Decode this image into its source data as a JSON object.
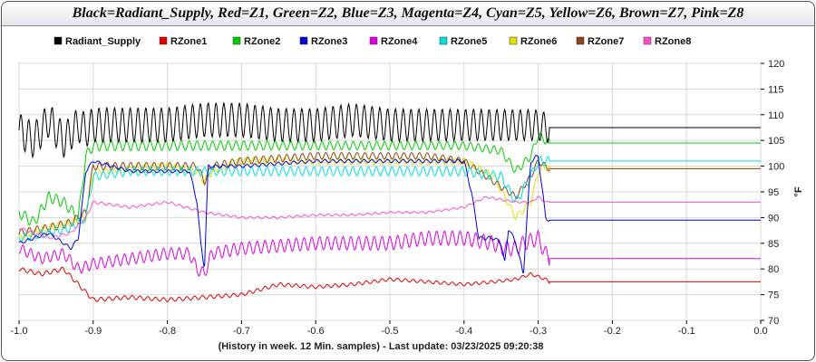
{
  "title": "Black=Radiant_Supply, Red=Z1, Green=Z2, Blue=Z3, Magenta=Z4, Cyan=Z5, Yellow=Z6, Brown=Z7, Pink=Z8",
  "footer": "(History in week. 12 Min. samples) - Last update: 03/23/2025 09:20:38",
  "chart_data": {
    "type": "line",
    "title": "Black=Radiant_Supply, Red=Z1, Green=Z2, Blue=Z3, Magenta=Z4, Cyan=Z5, Yellow=Z6, Brown=Z7, Pink=Z8",
    "xlabel": "(History in week. 12 Min. samples) - Last update: 03/23/2025 09:20:38",
    "ylabel": "°F",
    "xlim": [
      -1.0,
      0.0
    ],
    "ylim": [
      70,
      120
    ],
    "x_ticks": [
      "-1.0",
      "-0.9",
      "-0.8",
      "-0.7",
      "-0.6",
      "-0.5",
      "-0.4",
      "-0.3",
      "-0.2",
      "-0.1",
      "0.0"
    ],
    "y_ticks": [
      "70",
      "75",
      "80",
      "85",
      "90",
      "95",
      "100",
      "105",
      "110",
      "115",
      "120"
    ],
    "y_axis_side": "right",
    "grid": true,
    "legend": "top",
    "series": [
      {
        "name": "Radiant_Supply",
        "color": "#000000",
        "points": [
          [
            -1.0,
            107
          ],
          [
            -0.98,
            105
          ],
          [
            -0.96,
            109
          ],
          [
            -0.94,
            105
          ],
          [
            -0.92,
            108
          ],
          [
            -0.91,
            107
          ],
          [
            -0.9,
            108
          ],
          [
            -0.85,
            108
          ],
          [
            -0.8,
            108
          ],
          [
            -0.75,
            109
          ],
          [
            -0.7,
            109
          ],
          [
            -0.65,
            108
          ],
          [
            -0.6,
            108
          ],
          [
            -0.55,
            109
          ],
          [
            -0.5,
            108
          ],
          [
            -0.45,
            108
          ],
          [
            -0.4,
            108
          ],
          [
            -0.35,
            108
          ],
          [
            -0.3,
            108
          ],
          [
            -0.29,
            107.5
          ],
          [
            0.0,
            107.5
          ]
        ],
        "osc": 4.5
      },
      {
        "name": "RZone1",
        "color": "#e00000",
        "points": [
          [
            -1.0,
            80
          ],
          [
            -0.97,
            79
          ],
          [
            -0.94,
            80
          ],
          [
            -0.92,
            77
          ],
          [
            -0.9,
            74
          ],
          [
            -0.85,
            74.5
          ],
          [
            -0.8,
            74
          ],
          [
            -0.75,
            74.5
          ],
          [
            -0.7,
            75
          ],
          [
            -0.65,
            77
          ],
          [
            -0.6,
            76.5
          ],
          [
            -0.55,
            77
          ],
          [
            -0.5,
            78
          ],
          [
            -0.45,
            77.5
          ],
          [
            -0.4,
            77
          ],
          [
            -0.36,
            77.5
          ],
          [
            -0.33,
            78
          ],
          [
            -0.31,
            79
          ],
          [
            -0.29,
            78
          ],
          [
            -0.285,
            77.5
          ],
          [
            0.0,
            77.5
          ]
        ],
        "osc": 0.6
      },
      {
        "name": "RZone2",
        "color": "#00d000",
        "points": [
          [
            -1.0,
            91
          ],
          [
            -0.98,
            89
          ],
          [
            -0.96,
            94
          ],
          [
            -0.94,
            93
          ],
          [
            -0.92,
            90
          ],
          [
            -0.91,
            102
          ],
          [
            -0.9,
            104
          ],
          [
            -0.8,
            104
          ],
          [
            -0.7,
            104
          ],
          [
            -0.6,
            104
          ],
          [
            -0.5,
            104
          ],
          [
            -0.4,
            104
          ],
          [
            -0.35,
            103
          ],
          [
            -0.33,
            99
          ],
          [
            -0.31,
            102
          ],
          [
            -0.3,
            106
          ],
          [
            -0.29,
            105
          ],
          [
            -0.285,
            104.5
          ],
          [
            0.0,
            104.5
          ]
        ],
        "osc": 2.2
      },
      {
        "name": "RZone3",
        "color": "#0000e0",
        "points": [
          [
            -1.0,
            85
          ],
          [
            -0.96,
            87
          ],
          [
            -0.93,
            84
          ],
          [
            -0.92,
            86
          ],
          [
            -0.91,
            99
          ],
          [
            -0.9,
            101
          ],
          [
            -0.85,
            99
          ],
          [
            -0.8,
            99
          ],
          [
            -0.77,
            99
          ],
          [
            -0.76,
            93
          ],
          [
            -0.755,
            85
          ],
          [
            -0.75,
            80
          ],
          [
            -0.745,
            100
          ],
          [
            -0.7,
            100
          ],
          [
            -0.6,
            101
          ],
          [
            -0.5,
            101
          ],
          [
            -0.4,
            101
          ],
          [
            -0.39,
            95
          ],
          [
            -0.38,
            86
          ],
          [
            -0.36,
            86
          ],
          [
            -0.35,
            85
          ],
          [
            -0.345,
            81
          ],
          [
            -0.34,
            88
          ],
          [
            -0.33,
            85
          ],
          [
            -0.32,
            79
          ],
          [
            -0.31,
            101
          ],
          [
            -0.3,
            102
          ],
          [
            -0.29,
            90
          ],
          [
            -0.285,
            89.5
          ],
          [
            0.0,
            89.5
          ]
        ],
        "osc": 0.8
      },
      {
        "name": "RZone4",
        "color": "#e000e0",
        "points": [
          [
            -1.0,
            84
          ],
          [
            -0.97,
            82
          ],
          [
            -0.94,
            83
          ],
          [
            -0.92,
            80
          ],
          [
            -0.9,
            81
          ],
          [
            -0.85,
            82
          ],
          [
            -0.8,
            83
          ],
          [
            -0.77,
            83
          ],
          [
            -0.76,
            80
          ],
          [
            -0.75,
            79
          ],
          [
            -0.74,
            83
          ],
          [
            -0.7,
            84
          ],
          [
            -0.6,
            85
          ],
          [
            -0.5,
            85
          ],
          [
            -0.45,
            86
          ],
          [
            -0.4,
            86
          ],
          [
            -0.36,
            85
          ],
          [
            -0.35,
            84
          ],
          [
            -0.33,
            84
          ],
          [
            -0.32,
            85
          ],
          [
            -0.3,
            86
          ],
          [
            -0.29,
            83
          ],
          [
            -0.285,
            82
          ],
          [
            0.0,
            82
          ]
        ],
        "osc": 2.2
      },
      {
        "name": "RZone5",
        "color": "#00e0e0",
        "points": [
          [
            -1.0,
            86
          ],
          [
            -0.96,
            87
          ],
          [
            -0.93,
            88
          ],
          [
            -0.91,
            90
          ],
          [
            -0.9,
            98
          ],
          [
            -0.85,
            99
          ],
          [
            -0.8,
            99
          ],
          [
            -0.75,
            99
          ],
          [
            -0.7,
            99
          ],
          [
            -0.6,
            99
          ],
          [
            -0.5,
            99
          ],
          [
            -0.4,
            99
          ],
          [
            -0.35,
            98
          ],
          [
            -0.33,
            93
          ],
          [
            -0.31,
            98
          ],
          [
            -0.3,
            101
          ],
          [
            -0.29,
            101
          ],
          [
            -0.285,
            101
          ],
          [
            0.0,
            101
          ]
        ],
        "osc": 1.2
      },
      {
        "name": "RZone6",
        "color": "#e0e000",
        "points": [
          [
            -1.0,
            86
          ],
          [
            -0.96,
            88
          ],
          [
            -0.93,
            89
          ],
          [
            -0.91,
            90
          ],
          [
            -0.9,
            99
          ],
          [
            -0.85,
            99.5
          ],
          [
            -0.8,
            100
          ],
          [
            -0.76,
            99
          ],
          [
            -0.75,
            97
          ],
          [
            -0.74,
            99
          ],
          [
            -0.7,
            101
          ],
          [
            -0.6,
            101
          ],
          [
            -0.5,
            101
          ],
          [
            -0.4,
            101
          ],
          [
            -0.36,
            98
          ],
          [
            -0.33,
            90
          ],
          [
            -0.31,
            93
          ],
          [
            -0.3,
            99
          ],
          [
            -0.29,
            100
          ],
          [
            -0.285,
            99.5
          ],
          [
            0.0,
            99.5
          ]
        ],
        "osc": 0.9
      },
      {
        "name": "RZone7",
        "color": "#8b4513",
        "points": [
          [
            -1.0,
            87
          ],
          [
            -0.96,
            88
          ],
          [
            -0.93,
            89
          ],
          [
            -0.91,
            91
          ],
          [
            -0.9,
            100
          ],
          [
            -0.85,
            100
          ],
          [
            -0.8,
            100
          ],
          [
            -0.76,
            100
          ],
          [
            -0.75,
            97
          ],
          [
            -0.74,
            100
          ],
          [
            -0.7,
            101
          ],
          [
            -0.6,
            102
          ],
          [
            -0.5,
            102
          ],
          [
            -0.45,
            102
          ],
          [
            -0.4,
            101
          ],
          [
            -0.36,
            97
          ],
          [
            -0.33,
            94
          ],
          [
            -0.31,
            98
          ],
          [
            -0.3,
            101
          ],
          [
            -0.29,
            100
          ],
          [
            -0.285,
            99.5
          ],
          [
            0.0,
            99.5
          ]
        ],
        "osc": 1.1
      },
      {
        "name": "RZone8",
        "color": "#ff4fc8",
        "points": [
          [
            -1.0,
            88
          ],
          [
            -0.96,
            86
          ],
          [
            -0.93,
            87
          ],
          [
            -0.91,
            90
          ],
          [
            -0.9,
            93
          ],
          [
            -0.85,
            92
          ],
          [
            -0.8,
            93
          ],
          [
            -0.75,
            91
          ],
          [
            -0.7,
            90
          ],
          [
            -0.65,
            90
          ],
          [
            -0.6,
            90.5
          ],
          [
            -0.55,
            90.5
          ],
          [
            -0.5,
            91
          ],
          [
            -0.45,
            91
          ],
          [
            -0.4,
            92
          ],
          [
            -0.37,
            94
          ],
          [
            -0.33,
            93
          ],
          [
            -0.31,
            93
          ],
          [
            -0.3,
            94
          ],
          [
            -0.29,
            93
          ],
          [
            -0.285,
            93
          ],
          [
            0.0,
            93
          ]
        ],
        "osc": 0.5
      }
    ]
  }
}
